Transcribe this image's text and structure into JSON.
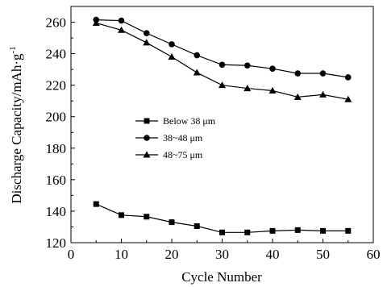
{
  "chart_data": {
    "type": "line",
    "title": "",
    "xlabel": "Cycle Number",
    "ylabel": "Discharge Capacity/mAh·g",
    "ylabel_sup": "-1",
    "xlim": [
      0,
      60
    ],
    "ylim": [
      120,
      270
    ],
    "xticks": [
      0,
      10,
      20,
      30,
      40,
      50,
      60
    ],
    "yticks": [
      120,
      140,
      160,
      180,
      200,
      220,
      240,
      260
    ],
    "grid": false,
    "legend_position": "middle-left",
    "x": [
      5,
      10,
      15,
      20,
      25,
      30,
      35,
      40,
      45,
      50,
      55
    ],
    "series": [
      {
        "name": "Below 38 μm",
        "marker": "square",
        "values": [
          144.5,
          137.5,
          136.5,
          133,
          130.5,
          126.5,
          126.5,
          127.5,
          128,
          127.5,
          127.5
        ]
      },
      {
        "name": "38~48 μm",
        "marker": "circle",
        "values": [
          261.5,
          261,
          253,
          246,
          239,
          233,
          232.5,
          230.5,
          227.5,
          227.5,
          225
        ]
      },
      {
        "name": "48~75 μm",
        "marker": "triangle",
        "values": [
          259.5,
          255,
          247,
          238,
          228,
          220,
          218,
          216.5,
          212.5,
          214,
          211
        ]
      }
    ]
  }
}
